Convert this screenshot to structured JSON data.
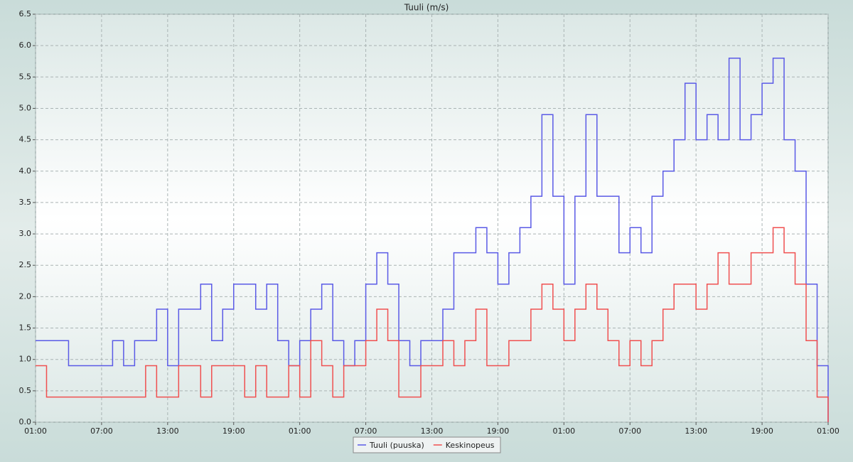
{
  "chart_data": {
    "type": "line",
    "step": true,
    "title": "Tuuli (m/s)",
    "x": [
      0,
      1,
      2,
      3,
      4,
      5,
      6,
      7,
      8,
      9,
      10,
      11,
      12,
      13,
      14,
      15,
      16,
      17,
      18,
      19,
      20,
      21,
      22,
      23,
      24,
      25,
      26,
      27,
      28,
      29,
      30,
      31,
      32,
      33,
      34,
      35,
      36,
      37,
      38,
      39,
      40,
      41,
      42,
      43,
      44,
      45,
      46,
      47,
      48,
      49,
      50,
      51,
      52,
      53,
      54,
      55,
      56,
      57,
      58,
      59,
      60,
      61,
      62,
      63,
      64,
      65,
      66,
      67,
      68,
      69,
      70,
      71,
      72
    ],
    "series": [
      {
        "name": "Tuuli (puuska)",
        "color": "#5a5ae6",
        "values": [
          1.3,
          1.3,
          1.3,
          0.9,
          0.9,
          0.9,
          0.9,
          1.3,
          0.9,
          1.3,
          1.3,
          1.8,
          0.9,
          1.8,
          1.8,
          2.2,
          1.3,
          1.8,
          2.2,
          2.2,
          1.8,
          2.2,
          1.3,
          0.9,
          1.3,
          1.8,
          2.2,
          1.3,
          0.9,
          1.3,
          2.2,
          2.7,
          2.2,
          1.3,
          0.9,
          1.3,
          1.3,
          1.8,
          2.7,
          2.7,
          3.1,
          2.7,
          2.2,
          2.7,
          3.1,
          3.6,
          4.9,
          3.6,
          2.2,
          3.6,
          4.9,
          3.6,
          3.6,
          2.7,
          3.1,
          2.7,
          3.6,
          4.0,
          4.5,
          5.4,
          4.5,
          4.9,
          4.5,
          5.8,
          4.5,
          4.9,
          5.4,
          5.8,
          4.5,
          4.0,
          2.2,
          0.9,
          0
        ]
      },
      {
        "name": "Keskinopeus",
        "color": "#f05050",
        "values": [
          0.9,
          0.4,
          0.4,
          0.4,
          0.4,
          0.4,
          0.4,
          0.4,
          0.4,
          0.4,
          0.9,
          0.4,
          0.4,
          0.9,
          0.9,
          0.4,
          0.9,
          0.9,
          0.9,
          0.4,
          0.9,
          0.4,
          0.4,
          0.9,
          0.4,
          1.3,
          0.9,
          0.4,
          0.9,
          0.9,
          1.3,
          1.8,
          1.3,
          0.4,
          0.4,
          0.9,
          0.9,
          1.3,
          0.9,
          1.3,
          1.8,
          0.9,
          0.9,
          1.3,
          1.3,
          1.8,
          2.2,
          1.8,
          1.3,
          1.8,
          2.2,
          1.8,
          1.3,
          0.9,
          1.3,
          0.9,
          1.3,
          1.8,
          2.2,
          2.2,
          1.8,
          2.2,
          2.7,
          2.2,
          2.2,
          2.7,
          2.7,
          3.1,
          2.7,
          2.2,
          1.3,
          0.4,
          0
        ]
      }
    ],
    "xlim": [
      0,
      72
    ],
    "xticks": [
      {
        "value": 0,
        "label": "01:00"
      },
      {
        "value": 6,
        "label": "07:00"
      },
      {
        "value": 12,
        "label": "13:00"
      },
      {
        "value": 18,
        "label": "19:00"
      },
      {
        "value": 24,
        "label": "01:00"
      },
      {
        "value": 30,
        "label": "07:00"
      },
      {
        "value": 36,
        "label": "13:00"
      },
      {
        "value": 42,
        "label": "19:00"
      },
      {
        "value": 48,
        "label": "01:00"
      },
      {
        "value": 54,
        "label": "07:00"
      },
      {
        "value": 60,
        "label": "13:00"
      },
      {
        "value": 66,
        "label": "19:00"
      },
      {
        "value": 72,
        "label": "01:00"
      }
    ],
    "ylim": [
      0,
      6.5
    ],
    "yticks": [
      {
        "value": 0,
        "label": "0.0"
      },
      {
        "value": 0.5,
        "label": "0.5"
      },
      {
        "value": 1,
        "label": "1.0"
      },
      {
        "value": 1.5,
        "label": "1.5"
      },
      {
        "value": 2,
        "label": "2.0"
      },
      {
        "value": 2.5,
        "label": "2.5"
      },
      {
        "value": 3,
        "label": "3.0"
      },
      {
        "value": 3.5,
        "label": "3.5"
      },
      {
        "value": 4,
        "label": "4.0"
      },
      {
        "value": 4.5,
        "label": "4.5"
      },
      {
        "value": 5,
        "label": "5.0"
      },
      {
        "value": 5.5,
        "label": "5.5"
      },
      {
        "value": 6,
        "label": "6.0"
      },
      {
        "value": 6.5,
        "label": "6.5"
      }
    ],
    "grid": true,
    "legend": "bottom"
  }
}
